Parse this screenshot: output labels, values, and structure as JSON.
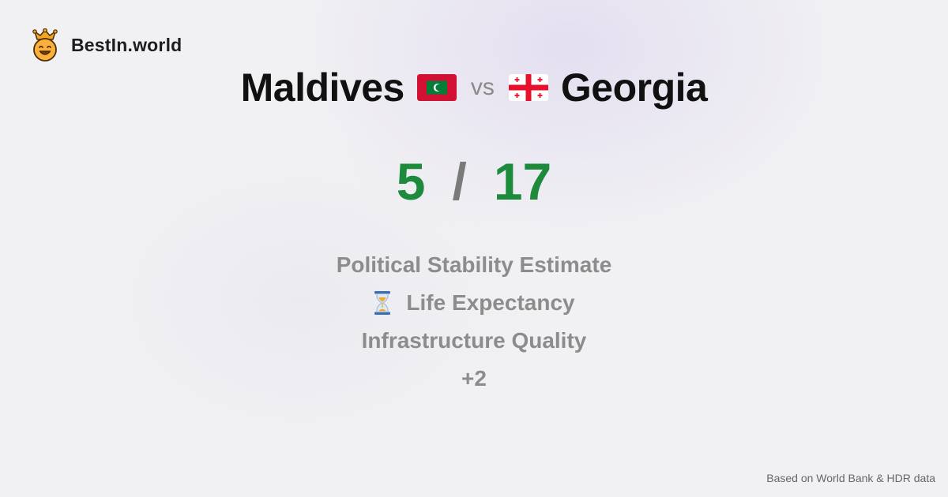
{
  "brand": {
    "name": "BestIn.world",
    "logo_icon": "crown-smiley-icon"
  },
  "comparison": {
    "left": {
      "name": "Maldives",
      "flag_icon": "maldives-flag-icon",
      "score": "5"
    },
    "vs_label": "vs",
    "right": {
      "name": "Georgia",
      "flag_icon": "georgia-flag-icon",
      "score": "17"
    },
    "separator": "/"
  },
  "features": [
    {
      "label": "Political Stability Estimate"
    },
    {
      "label": "Life Expectancy",
      "icon": "hourglass-icon"
    },
    {
      "label": "Infrastructure Quality"
    },
    {
      "label": "+2"
    }
  ],
  "colors": {
    "score": "#1e8a3c",
    "muted": "#8c8c8c"
  },
  "footer": {
    "source": "Based on World Bank & HDR data"
  }
}
